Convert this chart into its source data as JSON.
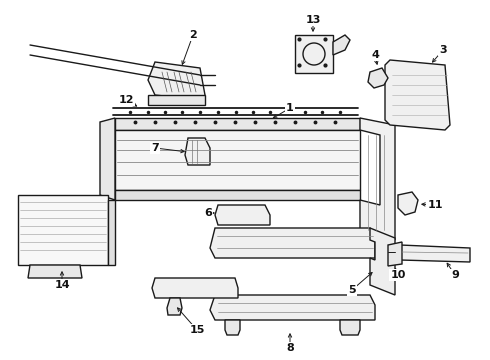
{
  "background_color": "#ffffff",
  "line_color": "#1a1a1a",
  "text_color": "#111111",
  "fig_width": 4.9,
  "fig_height": 3.6,
  "dpi": 100
}
